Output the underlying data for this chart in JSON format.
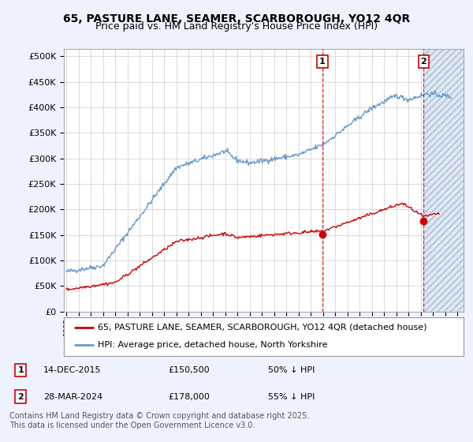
{
  "title": "65, PASTURE LANE, SEAMER, SCARBOROUGH, YO12 4QR",
  "subtitle": "Price paid vs. HM Land Registry's House Price Index (HPI)",
  "ylabel_ticks": [
    "£0",
    "£50K",
    "£100K",
    "£150K",
    "£200K",
    "£250K",
    "£300K",
    "£350K",
    "£400K",
    "£450K",
    "£500K"
  ],
  "ytick_values": [
    0,
    50000,
    100000,
    150000,
    200000,
    250000,
    300000,
    350000,
    400000,
    450000,
    500000
  ],
  "ylim": [
    0,
    515000
  ],
  "xlim_start": 1994.8,
  "xlim_end": 2027.5,
  "sale1_year": 2015.958,
  "sale1_price": 150500,
  "sale1_label": "1",
  "sale2_year": 2024.24,
  "sale2_price": 178000,
  "sale2_label": "2",
  "legend1": "65, PASTURE LANE, SEAMER, SCARBOROUGH, YO12 4QR (detached house)",
  "legend2": "HPI: Average price, detached house, North Yorkshire",
  "footer": "Contains HM Land Registry data © Crown copyright and database right 2025.\nThis data is licensed under the Open Government Licence v3.0.",
  "red_line_color": "#cc0000",
  "blue_line_color": "#6699cc",
  "background_color": "#eef2ff",
  "plot_bg_color": "#ffffff",
  "grid_color": "#cccccc",
  "vline_color": "#cc0000",
  "marker_box_color": "#cc0000",
  "hatch_color": "#aabbdd",
  "title_fontsize": 10,
  "subtitle_fontsize": 9,
  "axis_fontsize": 8,
  "legend_fontsize": 8,
  "annotation_fontsize": 8,
  "footer_fontsize": 7
}
